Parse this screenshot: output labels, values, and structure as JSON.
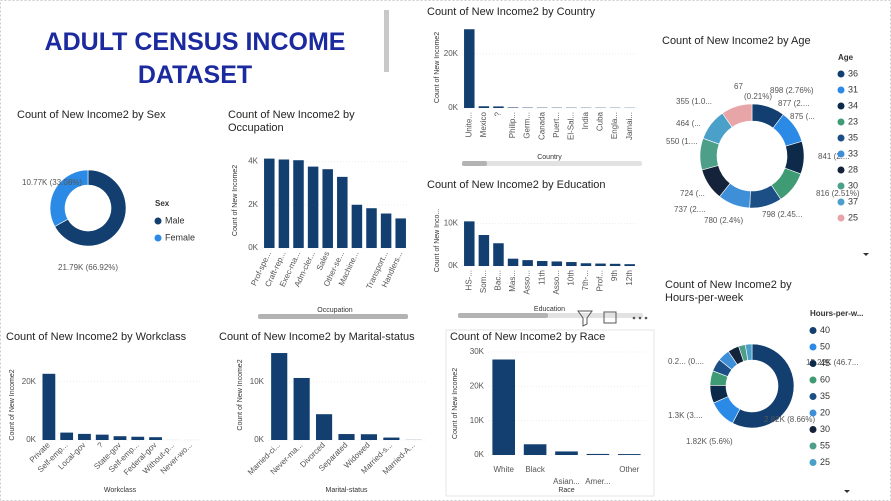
{
  "title": "ADULT CENSUS INCOME DATASET",
  "chart_data": [
    {
      "type": "donut",
      "title": "Count of New Income2 by Sex",
      "legend_title": "Sex",
      "categories": [
        "Male",
        "Female"
      ],
      "values": [
        21790,
        10770
      ],
      "value_labels": [
        "21.79K (66.92%)",
        "10.77K (33.08%)"
      ],
      "colors": [
        "#123f70",
        "#2b8ae6"
      ],
      "legend": "right"
    },
    {
      "type": "bar",
      "title": "Count of New Income2 by Occupation",
      "x_label": "Occupation",
      "y_label": "Count of New Income2",
      "categories": [
        "Prof-spe...",
        "Craft-rep...",
        "Exec-ma...",
        "Adm-cler...",
        "Sales",
        "Other-se...",
        "Machine...",
        null,
        "Transport...",
        "Handlers..."
      ],
      "values": [
        4140,
        4099,
        4066,
        3770,
        3650,
        3295,
        2002,
        1843,
        1597,
        1370
      ],
      "color": "#123f70",
      "ylim": [
        0,
        4400
      ],
      "yticks": [
        {
          "value": 0,
          "label": "0K"
        },
        {
          "value": 2000,
          "label": "2K"
        },
        {
          "value": 4000,
          "label": "4K"
        }
      ]
    },
    {
      "type": "bar",
      "title": "Count of New Income2 by Country",
      "x_label": "Country",
      "y_label": "Count of New Income2",
      "categories": [
        "Unite...",
        "Mexico",
        "?",
        "Philip...",
        "Germ...",
        "Canada",
        "Puert...",
        "El-Sal...",
        "India",
        "Cuba",
        "Engla...",
        "Jamai..."
      ],
      "values": [
        29170,
        643,
        583,
        198,
        137,
        121,
        114,
        106,
        100,
        95,
        90,
        81
      ],
      "color": "#123f70",
      "ylim": [
        0,
        30000
      ],
      "yticks": [
        {
          "value": 0,
          "label": "0K"
        },
        {
          "value": 20000,
          "label": "20K"
        }
      ]
    },
    {
      "type": "bar",
      "title": "Count of New Income2 by Education",
      "x_label": "Education",
      "y_label": "Count of New Inco...",
      "categories": [
        "HS-...",
        "Som...",
        "Bac...",
        "Mas...",
        "Asso...",
        "11th",
        "Asso...",
        "10th",
        "7th-...",
        "Prof...",
        "9th",
        "12th"
      ],
      "values": [
        10501,
        7291,
        5355,
        1723,
        1382,
        1175,
        1067,
        933,
        646,
        576,
        514,
        433
      ],
      "color": "#123f70",
      "ylim": [
        0,
        12000
      ],
      "yticks": [
        {
          "value": 0,
          "label": "0K"
        },
        {
          "value": 10000,
          "label": "10K"
        }
      ]
    },
    {
      "type": "donut",
      "title": "Count of New Income2 by Age",
      "legend_title": "Age",
      "categories": [
        "36",
        "31",
        "34",
        "23",
        "35",
        "33",
        "28",
        "30",
        "37",
        "25"
      ],
      "values": [
        898,
        888,
        886,
        877,
        876,
        875,
        867,
        861,
        858,
        841
      ],
      "value_labels": [
        "898 (2.76%)",
        null,
        null,
        "877 (2....",
        null,
        "875 (...",
        null,
        null,
        null,
        "841 (2...."
      ],
      "colors": [
        "#123f70",
        "#2b8ae6",
        "#0d2a4a",
        "#3f9b73",
        "#1b4f86",
        "#3e8fd8",
        "#14233a",
        "#4d9f8a",
        "#4aa0c8",
        "#e8a5a8"
      ],
      "annotations": [
        "67",
        "(0.21%)",
        "355 (1.0...",
        "464 (...",
        "550 (1....",
        "724 (...",
        "737 (2....",
        "780 (2.4%)",
        "798 (2.45...",
        "816 (2.51%)"
      ],
      "legend": "right"
    },
    {
      "type": "donut",
      "title": "Count of New Income2 by Hours-per-week",
      "legend_title": "Hours-per-w...",
      "categories": [
        "40",
        "50",
        "45",
        "60",
        "35",
        "20",
        "30",
        "55",
        "25"
      ],
      "values": [
        15217,
        2819,
        1824,
        1475,
        1297,
        1224,
        1149,
        694,
        674
      ],
      "value_labels": [
        "15.22K (46.7...",
        "2.82K (8.66%)",
        "1.82K (5.6%)",
        null,
        "1.3K (3....",
        null,
        null,
        null,
        null
      ],
      "colors": [
        "#123f70",
        "#2b8ae6",
        "#0d2a4a",
        "#3f9b73",
        "#1b4f86",
        "#3e8fd8",
        "#14233a",
        "#4d9f8a",
        "#4aa0c8"
      ],
      "annotations": [
        "0.2... (0...."
      ],
      "legend": "right"
    },
    {
      "type": "bar",
      "title": "Count of New Income2 by Workclass",
      "x_label": "Workclass",
      "y_label": "Count of New Income2",
      "categories": [
        "Private",
        "Self-emp...",
        "Local-gov",
        "?",
        "State-gov",
        "Self-emp...",
        "Federal-gov",
        "Without-p...",
        "Never-wo..."
      ],
      "values": [
        22696,
        2541,
        2093,
        1836,
        1298,
        1116,
        960,
        14,
        7
      ],
      "color": "#123f70",
      "ylim": [
        0,
        24000
      ],
      "yticks": [
        {
          "value": 0,
          "label": "0K"
        },
        {
          "value": 20000,
          "label": "20K"
        }
      ]
    },
    {
      "type": "bar",
      "title": "Count of New Income2 by Marital-status",
      "x_label": "Marital-status",
      "y_label": "Count of New Income2",
      "categories": [
        "Married-ci...",
        "Never-ma...",
        "Divorced",
        "Separated",
        "Widowed",
        "Married-s...",
        "Married-A..."
      ],
      "values": [
        14976,
        10683,
        4443,
        1025,
        993,
        418,
        23
      ],
      "color": "#123f70",
      "ylim": [
        0,
        15500
      ],
      "yticks": [
        {
          "value": 0,
          "label": "0K"
        },
        {
          "value": 10000,
          "label": "10K"
        }
      ]
    },
    {
      "type": "bar",
      "title": "Count of New Income2 by Race",
      "x_label": "Race",
      "y_label": "Count of New Income2",
      "categories": [
        "White",
        "Black",
        "Asian...",
        "Amer...",
        "Other"
      ],
      "values": [
        27816,
        3124,
        1039,
        311,
        271
      ],
      "color": "#123f70",
      "ylim": [
        0,
        30000
      ],
      "yticks": [
        {
          "value": 0,
          "label": "0K"
        },
        {
          "value": 10000,
          "label": "10K"
        },
        {
          "value": 20000,
          "label": "20K"
        },
        {
          "value": 30000,
          "label": "30K"
        }
      ]
    }
  ]
}
